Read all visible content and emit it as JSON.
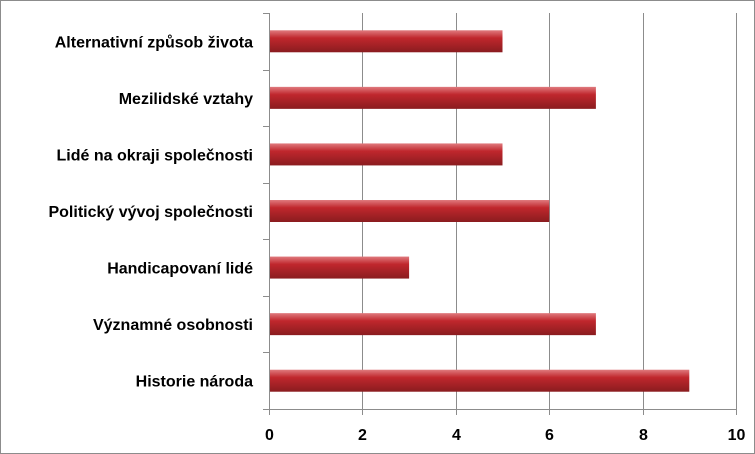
{
  "chart_data": {
    "type": "bar",
    "orientation": "horizontal",
    "categories": [
      "Alternativní způsob života",
      "Mezilidské vztahy",
      "Lidé na okraji společnosti",
      "Politický vývoj společnosti",
      "Handicapovaní lidé",
      "Významné osobnosti",
      "Historie národa"
    ],
    "values": [
      5,
      7,
      5,
      6,
      3,
      7,
      9
    ],
    "xlim": [
      0,
      10
    ],
    "xticks": [
      "0",
      "2",
      "4",
      "6",
      "8",
      "10"
    ],
    "grid": true,
    "legend": "none",
    "bar_color": "#c0272d",
    "bar_highlight_color": "#e07a7e",
    "bar_shadow_color": "#8a1c1f",
    "grid_color": "#8c8c8c"
  }
}
